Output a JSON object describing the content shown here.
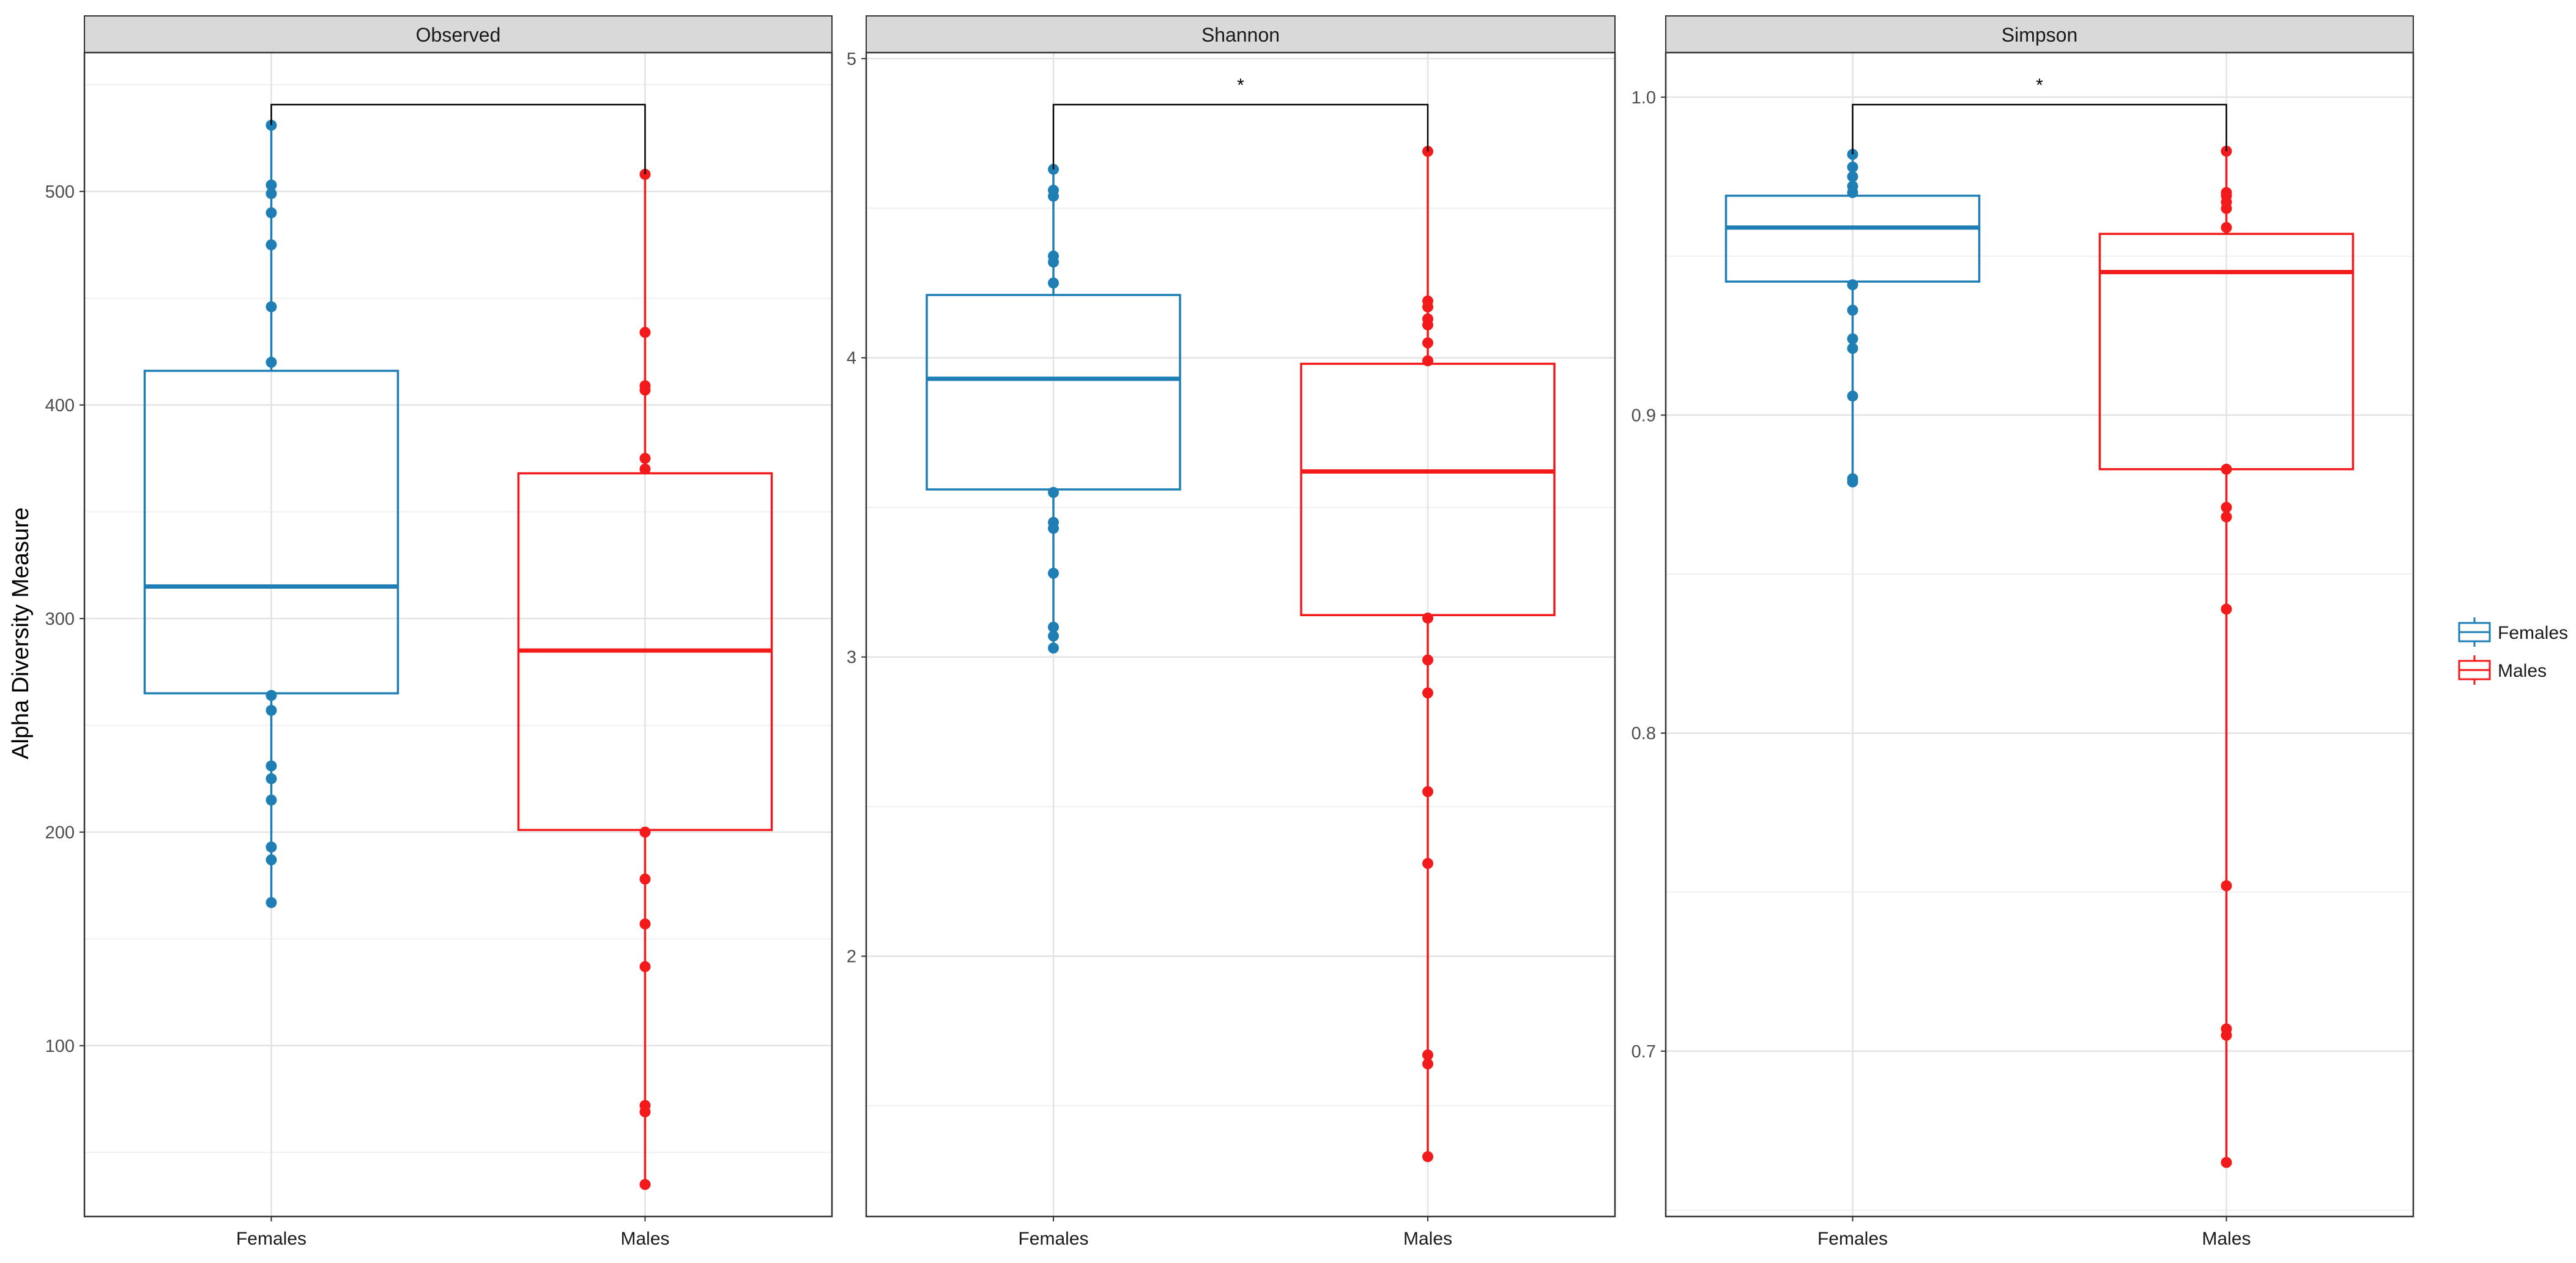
{
  "chart_data": {
    "type": "box",
    "ylabel": "Alpha Diversity Measure",
    "groups": [
      "Females",
      "Males"
    ],
    "colors": {
      "Females": "#1f7fb4",
      "Males": "#f21a1a"
    },
    "legend": {
      "position": "right",
      "entries": [
        "Females",
        "Males"
      ]
    },
    "grid": true,
    "panels": [
      {
        "title": "Observed",
        "ylim": [
          20,
          565
        ],
        "yticks": [
          100,
          200,
          300,
          400,
          500
        ],
        "significance": "",
        "boxes": [
          {
            "group": "Females",
            "whisker_low": 167,
            "q1": 265,
            "median": 315,
            "q3": 416,
            "whisker_high": 531,
            "points": [
              531,
              503,
              499,
              490,
              475,
              446,
              420,
              264,
              257,
              231,
              225,
              215,
              193,
              187,
              167
            ]
          },
          {
            "group": "Males",
            "whisker_low": 35,
            "q1": 201,
            "median": 285,
            "q3": 368,
            "whisker_high": 508,
            "points": [
              508,
              434,
              409,
              407,
              375,
              370,
              200,
              178,
              157,
              137,
              72,
              69,
              35
            ]
          }
        ]
      },
      {
        "title": "Shannon",
        "ylim": [
          1.13,
          5.02
        ],
        "yticks": [
          2,
          3,
          4,
          5
        ],
        "significance": "*",
        "boxes": [
          {
            "group": "Females",
            "whisker_low": 3.03,
            "q1": 3.56,
            "median": 3.93,
            "q3": 4.21,
            "whisker_high": 4.63,
            "points": [
              4.63,
              4.56,
              4.54,
              4.34,
              4.32,
              4.25,
              3.55,
              3.45,
              3.43,
              3.28,
              3.1,
              3.07,
              3.03
            ]
          },
          {
            "group": "Males",
            "whisker_low": 1.33,
            "q1": 3.14,
            "median": 3.62,
            "q3": 3.98,
            "whisker_high": 4.69,
            "points": [
              4.69,
              4.19,
              4.17,
              4.13,
              4.11,
              4.05,
              3.99,
              3.13,
              2.99,
              2.88,
              2.55,
              2.31,
              1.67,
              1.64,
              1.33
            ]
          }
        ]
      },
      {
        "title": "Simpson",
        "ylim": [
          0.648,
          1.014
        ],
        "yticks": [
          0.7,
          0.8,
          0.9,
          1.0
        ],
        "ytick_labels": [
          "0.7",
          "0.8",
          "0.9",
          "1.0"
        ],
        "significance": "*",
        "boxes": [
          {
            "group": "Females",
            "whisker_low": 0.879,
            "q1": 0.942,
            "median": 0.959,
            "q3": 0.969,
            "whisker_high": 0.982,
            "points": [
              0.982,
              0.978,
              0.975,
              0.972,
              0.97,
              0.941,
              0.933,
              0.924,
              0.921,
              0.906,
              0.88,
              0.879
            ]
          },
          {
            "group": "Males",
            "whisker_low": 0.665,
            "q1": 0.883,
            "median": 0.945,
            "q3": 0.957,
            "whisker_high": 0.983,
            "points": [
              0.983,
              0.97,
              0.969,
              0.967,
              0.965,
              0.959,
              0.883,
              0.871,
              0.868,
              0.839,
              0.752,
              0.707,
              0.705,
              0.665
            ]
          }
        ]
      }
    ]
  }
}
